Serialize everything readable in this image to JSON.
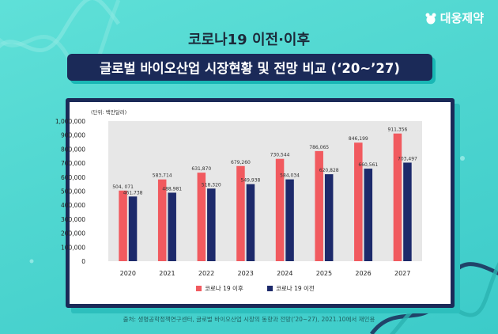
{
  "brand": {
    "logo_text": "대웅제약"
  },
  "header": {
    "title_line1": "코로나19 이전·이후",
    "title_line2": "글로벌 바이오산업 시장현황 및 전망 비교 (‘20~’27)"
  },
  "chart_data": {
    "type": "bar",
    "unit_label": "(단위: 백만달러)",
    "categories": [
      "2020",
      "2021",
      "2022",
      "2023",
      "2024",
      "2025",
      "2026",
      "2027"
    ],
    "series": [
      {
        "name": "코로나 19 이후",
        "color": "#f15a5f",
        "values": [
          504071,
          583714,
          631870,
          679260,
          730544,
          786065,
          846199,
          911356
        ],
        "labels": [
          "504, 071",
          "583,714",
          "631,870",
          "679,260",
          "730,544",
          "786,065",
          "846,199",
          "911,356"
        ]
      },
      {
        "name": "코로나 19 이전",
        "color": "#1d2a6b",
        "values": [
          461738,
          488981,
          518320,
          549938,
          584034,
          620828,
          660561,
          703497
        ],
        "labels": [
          "461,738",
          "488,981",
          "518,320",
          "549,938",
          "584,034",
          "620,828",
          "660,561",
          "703,497"
        ]
      }
    ],
    "y_ticks": [
      "1,000,000",
      "900,000",
      "800,000",
      "700,000",
      "600,000",
      "500,000",
      "400,000",
      "300,000",
      "200,000",
      "100,000",
      "0"
    ],
    "ylim": [
      0,
      1000000
    ],
    "grid": false,
    "plot_background": "#e7e7e7",
    "legend_position": "bottom-center"
  },
  "footer": {
    "source": "출처: 생명공학정책연구센터, 글로벌 바이오산업 시장의 동향과 전망(‘20~27), 2021.10에서 재인용"
  }
}
